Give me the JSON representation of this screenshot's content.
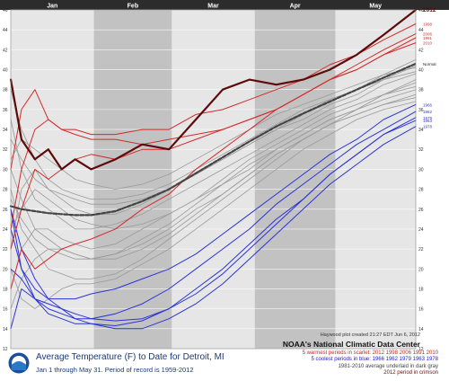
{
  "chart_data": {
    "type": "line",
    "title": "Average Temperature (F) to Date for Detroit, MI",
    "subtitle": "Jan 1 through May 31. Period of record is 1959-2012",
    "months": [
      "Jan",
      "Feb",
      "Mar",
      "Apr",
      "May"
    ],
    "ylim": [
      12,
      46
    ],
    "y_ticks": [
      12,
      14,
      16,
      18,
      20,
      22,
      24,
      26,
      28,
      30,
      32,
      34,
      36,
      38,
      40,
      42,
      44,
      46
    ],
    "x_days": [
      1,
      5,
      10,
      15,
      20,
      25,
      31,
      40,
      50,
      60,
      70,
      80,
      90,
      100,
      110,
      120,
      130,
      140,
      152
    ],
    "series": [
      {
        "name": "2012",
        "role": "highlight",
        "values": [
          39,
          33,
          31,
          32,
          30,
          31,
          30,
          31,
          32.5,
          32,
          35,
          38,
          39,
          38.5,
          39,
          40,
          41.5,
          43.5,
          46
        ]
      },
      {
        "name": "Normal",
        "role": "normal",
        "values": [
          26.3,
          26,
          25.8,
          25.6,
          25.5,
          25.4,
          25.4,
          25.8,
          26.8,
          28,
          29.6,
          31.2,
          32.8,
          34.3,
          35.6,
          36.8,
          38,
          39.2,
          40.6
        ]
      },
      {
        "name": "1998",
        "role": "warm",
        "values": [
          30,
          36,
          38,
          35,
          34,
          34,
          33.5,
          33.5,
          34,
          34,
          35.5,
          36,
          37,
          38,
          39,
          40.5,
          41.5,
          43,
          44.6
        ]
      },
      {
        "name": "2006",
        "role": "warm",
        "values": [
          24,
          30,
          34,
          35,
          34,
          33.5,
          33,
          33,
          32.5,
          33,
          33.5,
          34,
          35,
          36,
          37.5,
          39,
          40.5,
          42,
          43.6
        ]
      },
      {
        "name": "1991",
        "role": "warm",
        "values": [
          22,
          26,
          30,
          29,
          30,
          31,
          31.5,
          31,
          32,
          32,
          33,
          34,
          35,
          36,
          37.5,
          39,
          40,
          41.5,
          43.2
        ]
      },
      {
        "name": "2010",
        "role": "warm",
        "values": [
          18,
          22,
          20,
          21,
          22,
          22.5,
          23,
          24,
          26,
          27.5,
          30,
          32,
          34,
          36,
          37.5,
          39,
          40,
          41.5,
          42.7
        ]
      },
      {
        "name": "1966",
        "role": "cool",
        "values": [
          26,
          20,
          18,
          17,
          17,
          17,
          17.5,
          18,
          19,
          20,
          21.5,
          23.5,
          25.5,
          27.5,
          29.5,
          31.5,
          33,
          35,
          36.5
        ]
      },
      {
        "name": "1962",
        "role": "cool",
        "values": [
          14,
          18,
          17,
          16,
          15.5,
          15,
          15,
          15.5,
          16.5,
          18,
          20,
          22,
          24,
          26.5,
          28.5,
          30.5,
          32.5,
          34,
          35.8
        ]
      },
      {
        "name": "1979",
        "role": "cool",
        "values": [
          20,
          19,
          17,
          16.5,
          16,
          15.5,
          15,
          14.8,
          15,
          16,
          17.5,
          19.5,
          22,
          24.5,
          27,
          29.5,
          31.5,
          33.5,
          35.2
        ]
      },
      {
        "name": "1963",
        "role": "cool",
        "values": [
          24,
          20,
          17,
          15.5,
          15,
          14.5,
          14.5,
          14.3,
          14.8,
          16,
          18,
          20,
          22.5,
          25,
          27,
          29.5,
          31.5,
          33.5,
          34.9
        ]
      },
      {
        "name": "1978",
        "role": "cool",
        "values": [
          26,
          22,
          19,
          17,
          16,
          15,
          14.5,
          14,
          14,
          15,
          16.5,
          18.5,
          21,
          23.5,
          26,
          28.5,
          30.5,
          32.5,
          34.3
        ]
      },
      {
        "name": "",
        "role": "other",
        "values": [
          30,
          27,
          24,
          23,
          22,
          21.5,
          21,
          21.5,
          22.5,
          24,
          26,
          27.5,
          29.5,
          31.5,
          33,
          34.5,
          36,
          37.5,
          39
        ]
      },
      {
        "name": "",
        "role": "other",
        "values": [
          22,
          28,
          30,
          28,
          27,
          26,
          25.5,
          25.5,
          26.5,
          28,
          29.5,
          31,
          32.5,
          34,
          35.5,
          37,
          38,
          39.5,
          40.2
        ]
      },
      {
        "name": "",
        "role": "other",
        "values": [
          35,
          30,
          27,
          26,
          25,
          24,
          24,
          24.5,
          25.5,
          27,
          28.5,
          30,
          31.5,
          33,
          34.5,
          36,
          37,
          38.5,
          39.6
        ]
      },
      {
        "name": "",
        "role": "other",
        "values": [
          18,
          22,
          24,
          24,
          23,
          22.5,
          22,
          22.5,
          24,
          25.5,
          27,
          29,
          31,
          32.5,
          34,
          35.5,
          36.5,
          37.5,
          38.3
        ]
      },
      {
        "name": "",
        "role": "other",
        "values": [
          28,
          24,
          22,
          20,
          19.5,
          19,
          19,
          19.5,
          21,
          23,
          25,
          27,
          29,
          31,
          33,
          34.5,
          35.5,
          36.5,
          37.5
        ]
      },
      {
        "name": "",
        "role": "other",
        "values": [
          33,
          31,
          29,
          28,
          27.5,
          27,
          26.5,
          26.5,
          27,
          28,
          29.5,
          31,
          32.5,
          34,
          35,
          36.5,
          37.5,
          39,
          40.4
        ]
      },
      {
        "name": "",
        "role": "other",
        "values": [
          16,
          19,
          21,
          22,
          22,
          21.5,
          21,
          21,
          22,
          23.5,
          25.5,
          27.5,
          29.5,
          31.5,
          33,
          34.5,
          35.5,
          36.5,
          37.2
        ]
      },
      {
        "name": "",
        "role": "other",
        "values": [
          38,
          34,
          31,
          29,
          28,
          27.5,
          27,
          27,
          27.5,
          28.5,
          30,
          31.5,
          33,
          34.5,
          36,
          37,
          38,
          39,
          39.8
        ]
      },
      {
        "name": "",
        "role": "other",
        "values": [
          24,
          26,
          28,
          27,
          26,
          25,
          24.5,
          24,
          24.5,
          25.5,
          27,
          28.5,
          30,
          32,
          33.5,
          35,
          36,
          37.5,
          38.7
        ]
      },
      {
        "name": "",
        "role": "other",
        "values": [
          20,
          17,
          16,
          17,
          18,
          18.5,
          18.5,
          19,
          20.5,
          22,
          24,
          26,
          28,
          30,
          32,
          33.5,
          35,
          36,
          36.8
        ]
      },
      {
        "name": "",
        "role": "other",
        "values": [
          31,
          33,
          32,
          31,
          30,
          29,
          28.5,
          28,
          28.5,
          29.5,
          31,
          32.5,
          34,
          35.5,
          36.5,
          37.5,
          38.5,
          39.5,
          41
        ]
      },
      {
        "name": "",
        "role": "other",
        "values": [
          27,
          25,
          23,
          22,
          21.5,
          21,
          21,
          21.5,
          23,
          24.5,
          26.5,
          28.5,
          30.5,
          32,
          33.5,
          35,
          36,
          37,
          38
        ]
      }
    ],
    "right_labels": [
      {
        "text": "2012",
        "y": 46,
        "role": "highlight"
      },
      {
        "text": "1998",
        "y": 44.6,
        "role": "warm"
      },
      {
        "text": "2006",
        "y": 43.6,
        "role": "warm"
      },
      {
        "text": "1991",
        "y": 43.2,
        "role": "warm"
      },
      {
        "text": "2010",
        "y": 42.7,
        "role": "warm"
      },
      {
        "text": "Normal",
        "y": 40.6,
        "role": "normal"
      },
      {
        "text": "1966",
        "y": 36.5,
        "role": "cool"
      },
      {
        "text": "1962",
        "y": 35.8,
        "role": "cool"
      },
      {
        "text": "1979",
        "y": 35.2,
        "role": "cool"
      },
      {
        "text": "1963",
        "y": 34.9,
        "role": "cool"
      },
      {
        "text": "1978",
        "y": 34.3,
        "role": "cool"
      }
    ],
    "colors": {
      "highlight": "#5c0b0b",
      "warm": "#d42a2a",
      "cool": "#2b35d4",
      "normal": "#444444",
      "other": "#9a9a9a",
      "plot_bg": "#e6e6e6",
      "band_bg": "#c2c2c2",
      "header_bg": "#2c2c2c"
    }
  },
  "footer": {
    "title": "Average Temperature (F) to Date for Detroit, MI",
    "subtitle": "Jan 1 through May 31. Period of record is 1959-2012"
  },
  "credit": {
    "small": "Haywood plot created 21:27 EDT Jun 6, 2012",
    "big": "NOAA's National Climatic Data Center"
  },
  "legend": {
    "warm": "5 warmest periods in scarlet: 2012 1998 2006 1991 2010",
    "cool": "5 coolest periods in blue: 1966 1962 1979 1963 1978",
    "normal": "1981-2010 average underlaid in dark gray",
    "highlight": "2012 period in crimson"
  }
}
